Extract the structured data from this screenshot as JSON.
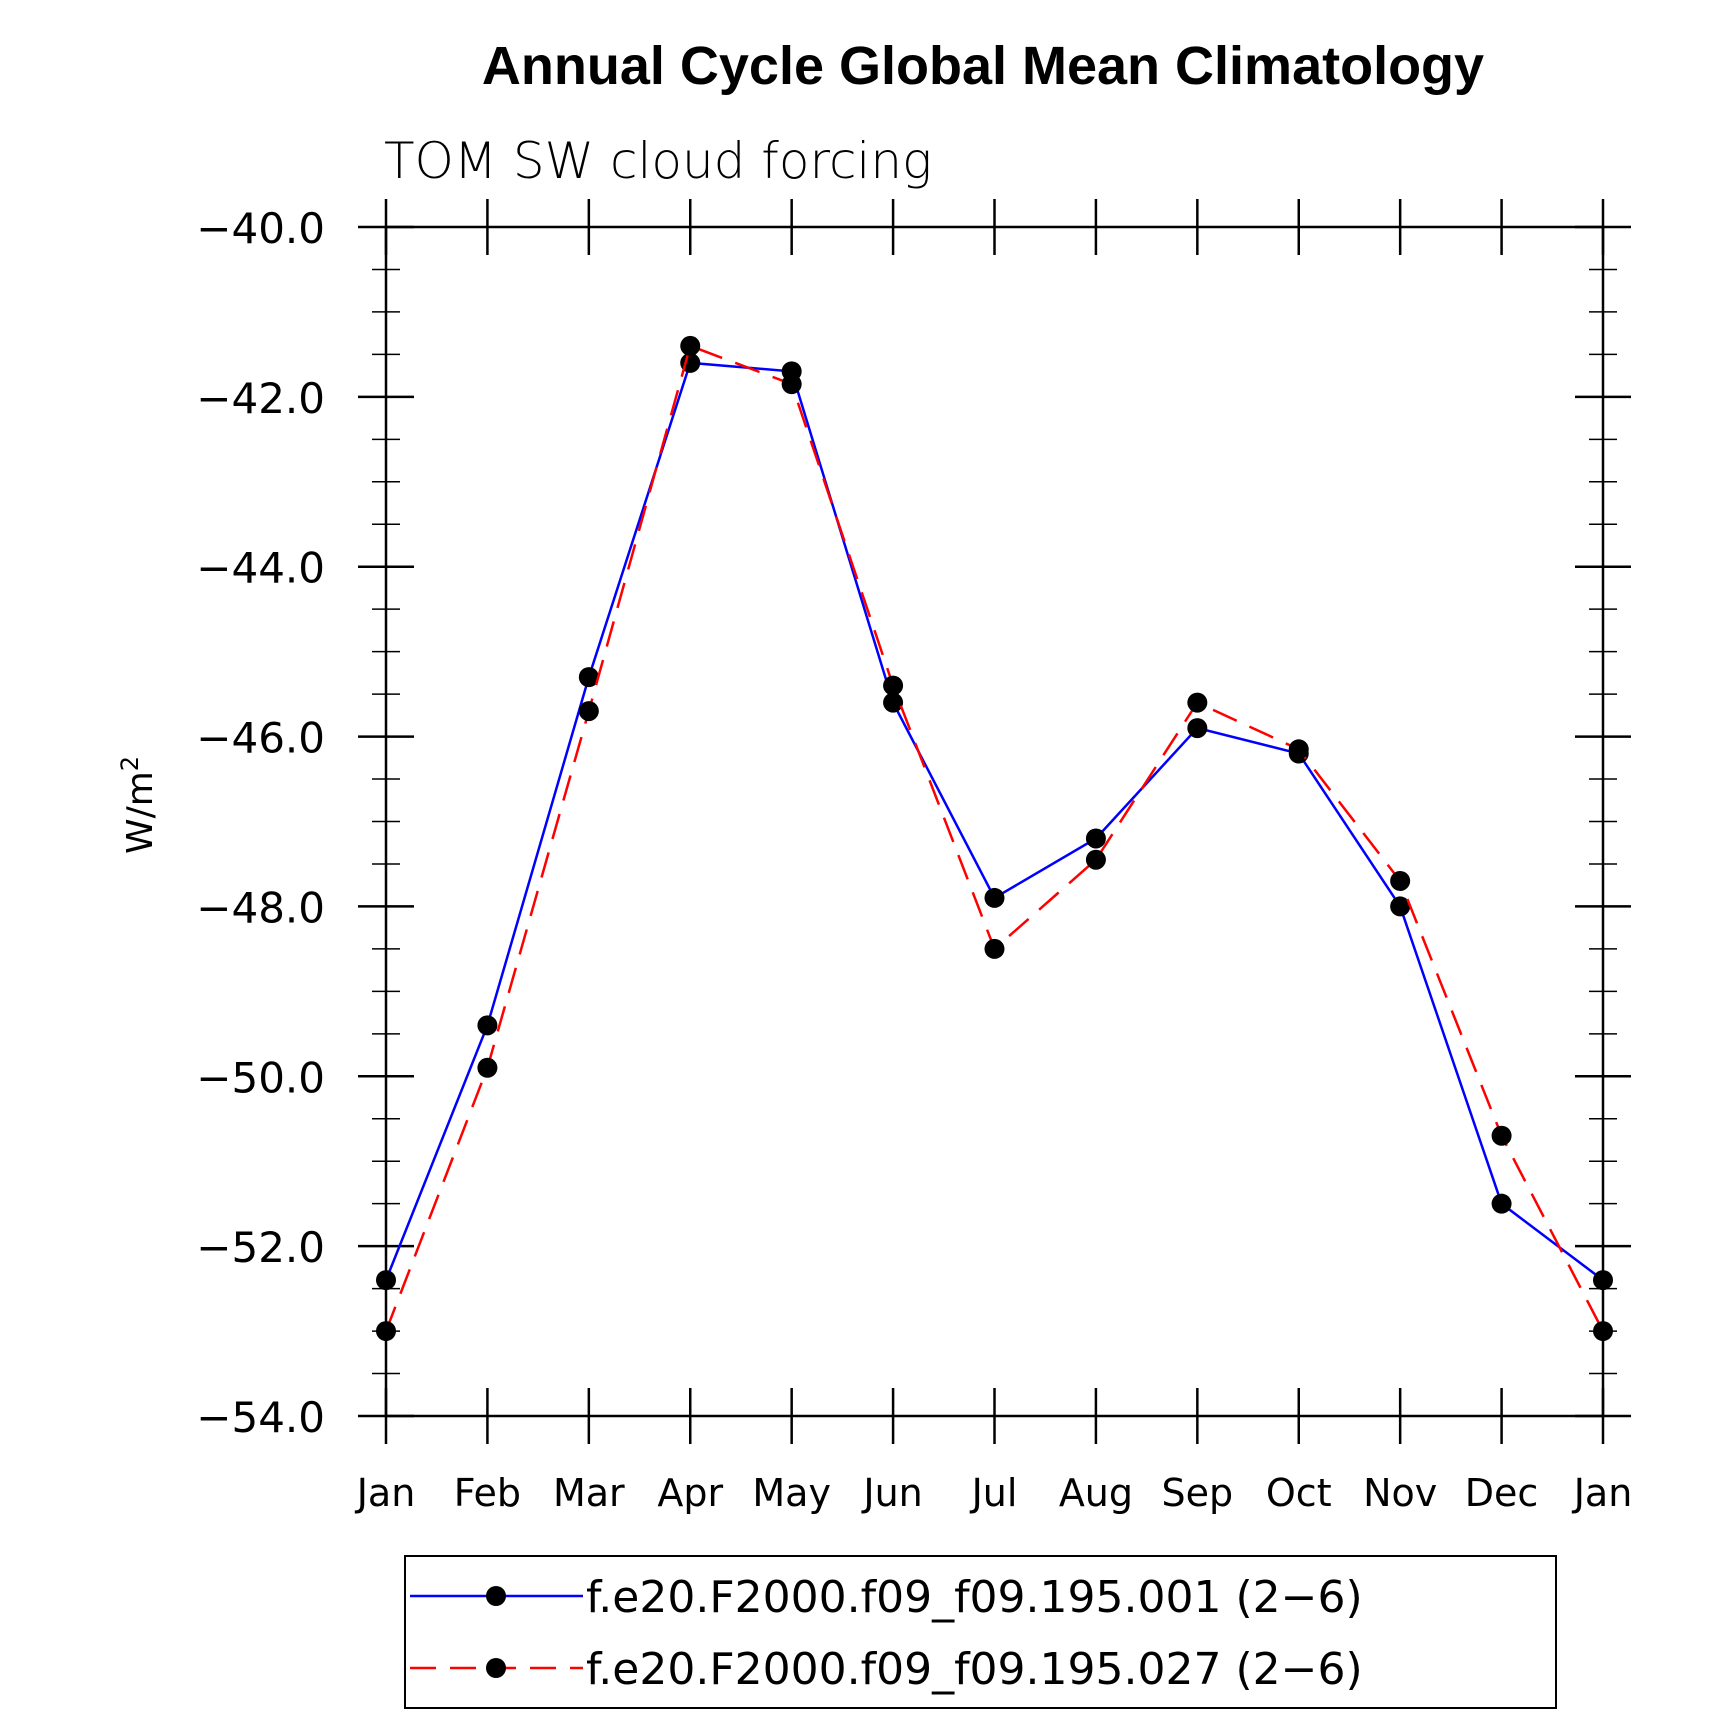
{
  "chart_data": {
    "type": "line",
    "title": "Annual Cycle Global Mean Climatology",
    "subtitle": "TOM SW cloud forcing",
    "ylabel": "W/m",
    "ylabel_superscript": "2",
    "ylim": [
      -54.0,
      -40.0
    ],
    "yticks": [
      -40.0,
      -42.0,
      -44.0,
      -46.0,
      -48.0,
      -50.0,
      -52.0,
      -54.0
    ],
    "ytick_labels": [
      "−40.0",
      "−42.0",
      "−44.0",
      "−46.0",
      "−48.0",
      "−50.0",
      "−52.0",
      "−54.0"
    ],
    "categories": [
      "Jan",
      "Feb",
      "Mar",
      "Apr",
      "May",
      "Jun",
      "Jul",
      "Aug",
      "Sep",
      "Oct",
      "Nov",
      "Dec",
      "Jan"
    ],
    "grid": false,
    "legend_position": "bottom",
    "series": [
      {
        "name": "f.e20.F2000.f09_f09.195.001 (2−6)",
        "color": "#0000ff",
        "line_style": "solid",
        "marker": "filled-circle",
        "values": [
          -52.4,
          -49.4,
          -45.3,
          -41.6,
          -41.7,
          -45.6,
          -47.9,
          -47.2,
          -45.9,
          -46.2,
          -48.0,
          -51.5,
          -52.4
        ]
      },
      {
        "name": "f.e20.F2000.f09_f09.195.027 (2−6)",
        "color": "#ff0000",
        "line_style": "dashed",
        "marker": "filled-circle",
        "values": [
          -53.0,
          -49.9,
          -45.7,
          -41.4,
          -41.85,
          -45.4,
          -48.5,
          -47.45,
          -45.6,
          -46.15,
          -47.7,
          -50.7,
          -53.0
        ]
      }
    ]
  }
}
